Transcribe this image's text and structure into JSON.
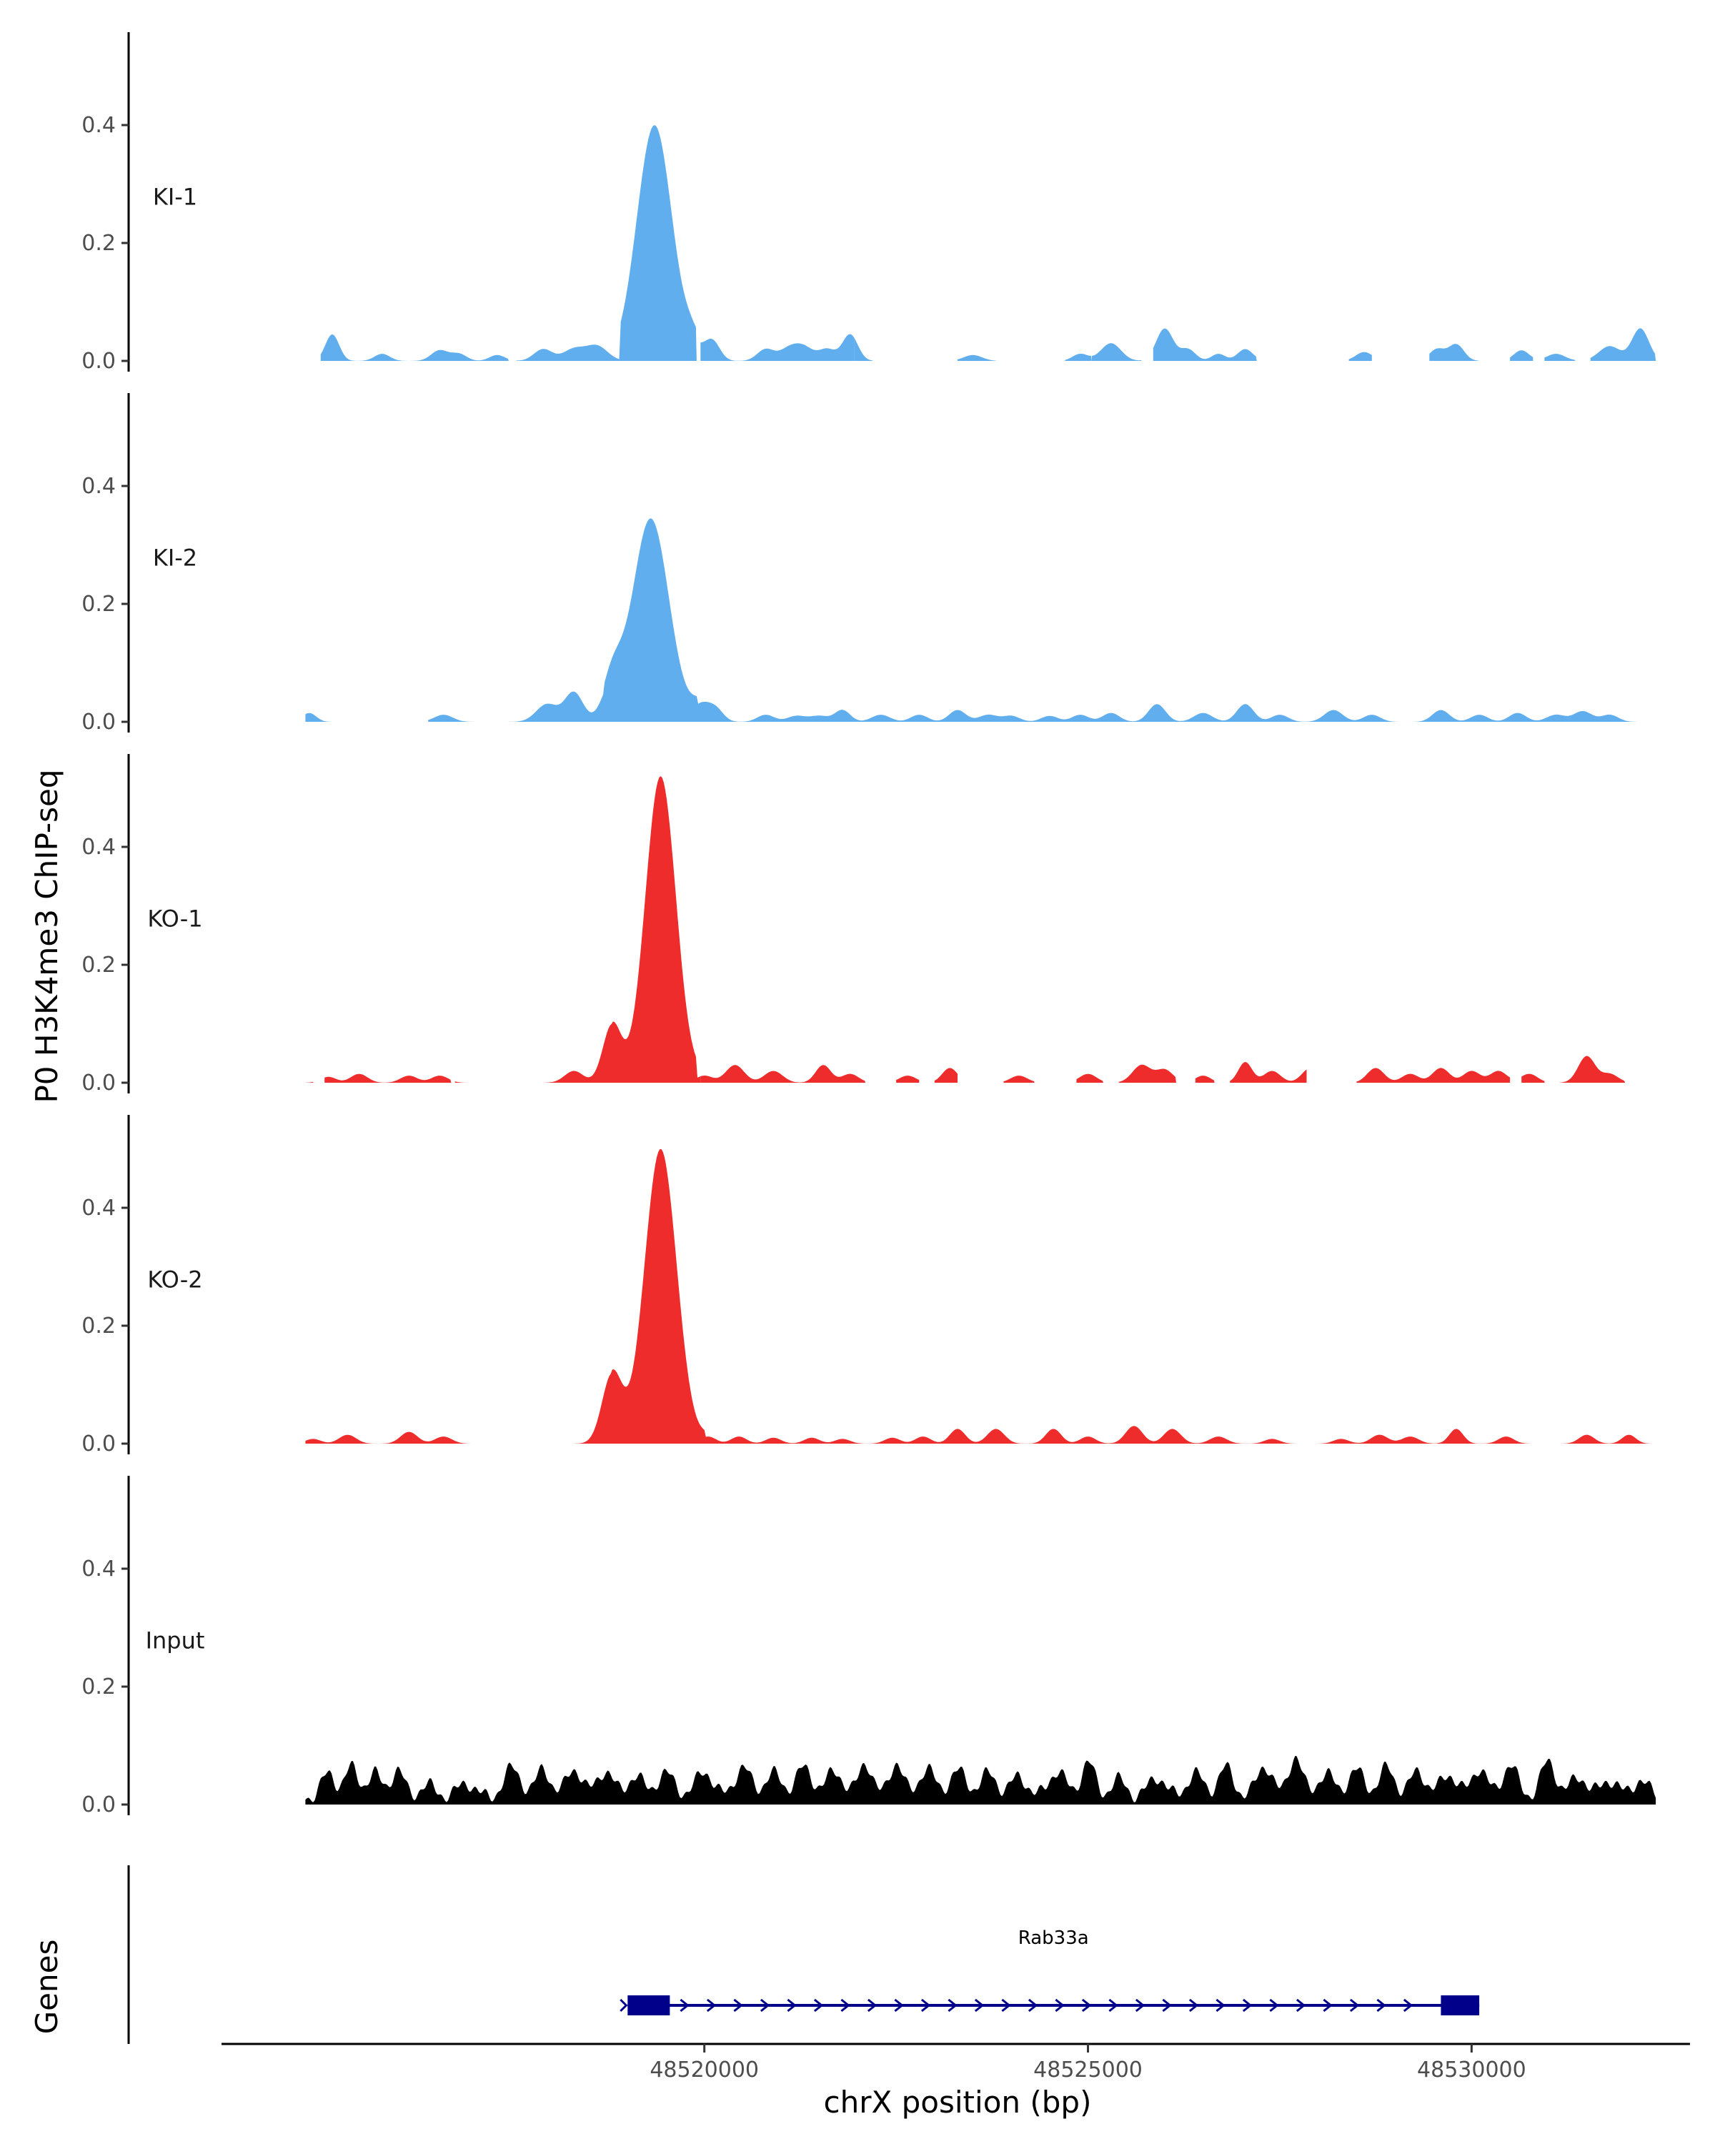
{
  "chart_data": {
    "type": "area",
    "ylabel": "P0 H3K4me3 ChIP-seq",
    "xlabel": "chrX position (bp)",
    "xlim": [
      48513800,
      48532800
    ],
    "ylim": [
      0,
      0.55
    ],
    "yticks": [
      0.0,
      0.2,
      0.4
    ],
    "ytick_labels": [
      "0.0",
      "0.2",
      "0.4"
    ],
    "xticks": [
      48520000,
      48525000,
      48530000
    ],
    "xtick_labels": [
      "48520000",
      "48525000",
      "48530000"
    ],
    "colors": {
      "KI": "#61aeee",
      "KO": "#ee2c2c",
      "Input": "#000000",
      "gene": "#00008b"
    },
    "tracks": [
      {
        "name": "KI-1",
        "color": "#61aeee",
        "peak": {
          "center": 48519350,
          "sigma": 230,
          "height": 0.4,
          "left_start": 48518900,
          "right_end": 48519900
        },
        "bumps": [
          [
            48515150,
            0.045,
            90
          ],
          [
            48515800,
            0.012,
            100
          ],
          [
            48516550,
            0.018,
            110
          ],
          [
            48516800,
            0.012,
            100
          ],
          [
            48517300,
            0.01,
            100
          ],
          [
            48517900,
            0.02,
            120
          ],
          [
            48518300,
            0.02,
            140
          ],
          [
            48518600,
            0.025,
            140
          ],
          [
            48519850,
            0.03,
            110
          ],
          [
            48520100,
            0.035,
            100
          ],
          [
            48520800,
            0.02,
            110
          ],
          [
            48521100,
            0.02,
            120
          ],
          [
            48521300,
            0.022,
            120
          ],
          [
            48521600,
            0.02,
            110
          ],
          [
            48521900,
            0.045,
            100
          ],
          [
            48523500,
            0.01,
            120
          ],
          [
            48524900,
            0.012,
            100
          ],
          [
            48525300,
            0.03,
            130
          ],
          [
            48526000,
            0.055,
            110
          ],
          [
            48526300,
            0.02,
            100
          ],
          [
            48526700,
            0.012,
            90
          ],
          [
            48527050,
            0.02,
            100
          ],
          [
            48528600,
            0.015,
            110
          ],
          [
            48529550,
            0.02,
            100
          ],
          [
            48529800,
            0.028,
            100
          ],
          [
            48530650,
            0.018,
            100
          ],
          [
            48531100,
            0.012,
            120
          ],
          [
            48531800,
            0.025,
            140
          ],
          [
            48532200,
            0.055,
            110
          ]
        ],
        "segments": [
          [
            48515000,
            48517450
          ],
          [
            48517550,
            48519900
          ],
          [
            48519950,
            48521950
          ],
          [
            48521950,
            48522200
          ],
          [
            48523300,
            48523800
          ],
          [
            48524700,
            48525050
          ],
          [
            48525050,
            48525700
          ],
          [
            48525850,
            48527200
          ],
          [
            48528400,
            48528700
          ],
          [
            48529450,
            48529950
          ],
          [
            48529950,
            48530100
          ],
          [
            48530500,
            48530800
          ],
          [
            48530950,
            48531350
          ],
          [
            48531550,
            48532400
          ]
        ]
      },
      {
        "name": "KI-2",
        "color": "#61aeee",
        "peak": {
          "center": 48519300,
          "sigma": 240,
          "height": 0.345,
          "left_start": 48518700,
          "right_end": 48519900
        },
        "bumps": [
          [
            48514850,
            0.015,
            90
          ],
          [
            48516600,
            0.012,
            120
          ],
          [
            48517950,
            0.03,
            140
          ],
          [
            48518300,
            0.05,
            120
          ],
          [
            48518800,
            0.07,
            130
          ],
          [
            48519950,
            0.03,
            120
          ],
          [
            48520150,
            0.02,
            100
          ],
          [
            48520800,
            0.012,
            110
          ],
          [
            48521200,
            0.01,
            120
          ],
          [
            48521500,
            0.01,
            120
          ],
          [
            48521800,
            0.02,
            100
          ],
          [
            48522300,
            0.012,
            120
          ],
          [
            48522800,
            0.012,
            110
          ],
          [
            48523300,
            0.02,
            110
          ],
          [
            48523700,
            0.012,
            120
          ],
          [
            48524000,
            0.01,
            110
          ],
          [
            48524500,
            0.01,
            110
          ],
          [
            48524900,
            0.012,
            110
          ],
          [
            48525300,
            0.015,
            110
          ],
          [
            48525900,
            0.03,
            110
          ],
          [
            48526500,
            0.015,
            120
          ],
          [
            48527050,
            0.03,
            110
          ],
          [
            48527500,
            0.012,
            110
          ],
          [
            48528200,
            0.02,
            120
          ],
          [
            48528700,
            0.012,
            110
          ],
          [
            48529600,
            0.02,
            110
          ],
          [
            48530100,
            0.012,
            110
          ],
          [
            48530600,
            0.015,
            110
          ],
          [
            48531100,
            0.012,
            120
          ],
          [
            48531450,
            0.018,
            120
          ],
          [
            48531800,
            0.012,
            110
          ]
        ],
        "segments": [
          [
            48514800,
            48515150
          ],
          [
            48516400,
            48532400
          ]
        ]
      },
      {
        "name": "KO-1",
        "color": "#ee2c2c",
        "peak": {
          "center": 48519430,
          "sigma": 200,
          "height": 0.52,
          "left_start": 48518800,
          "right_end": 48519900
        },
        "bumps": [
          [
            48515100,
            0.01,
            100
          ],
          [
            48515500,
            0.015,
            110
          ],
          [
            48516150,
            0.012,
            110
          ],
          [
            48516550,
            0.012,
            110
          ],
          [
            48518300,
            0.02,
            120
          ],
          [
            48518800,
            0.1,
            120
          ],
          [
            48520000,
            0.012,
            110
          ],
          [
            48520400,
            0.03,
            120
          ],
          [
            48520900,
            0.02,
            120
          ],
          [
            48521550,
            0.03,
            100
          ],
          [
            48521900,
            0.015,
            110
          ],
          [
            48522650,
            0.012,
            110
          ],
          [
            48523200,
            0.025,
            100
          ],
          [
            48524100,
            0.012,
            110
          ],
          [
            48525000,
            0.015,
            110
          ],
          [
            48525700,
            0.03,
            120
          ],
          [
            48526000,
            0.022,
            110
          ],
          [
            48526500,
            0.012,
            100
          ],
          [
            48527050,
            0.035,
            90
          ],
          [
            48527400,
            0.02,
            110
          ],
          [
            48527900,
            0.025,
            110
          ],
          [
            48528750,
            0.025,
            110
          ],
          [
            48529200,
            0.015,
            110
          ],
          [
            48529600,
            0.025,
            110
          ],
          [
            48530000,
            0.02,
            110
          ],
          [
            48530350,
            0.02,
            110
          ],
          [
            48530750,
            0.015,
            110
          ],
          [
            48531500,
            0.045,
            110
          ],
          [
            48531800,
            0.015,
            110
          ]
        ],
        "segments": [
          [
            48514800,
            48514900
          ],
          [
            48515050,
            48516700
          ],
          [
            48516750,
            48519950
          ],
          [
            48519950,
            48522100
          ],
          [
            48522500,
            48522800
          ],
          [
            48523000,
            48523300
          ],
          [
            48523900,
            48524300
          ],
          [
            48524850,
            48525200
          ],
          [
            48525400,
            48526150
          ],
          [
            48526400,
            48526650
          ],
          [
            48526850,
            48527850
          ],
          [
            48528500,
            48530500
          ],
          [
            48530650,
            48530950
          ],
          [
            48531150,
            48532000
          ]
        ]
      },
      {
        "name": "KO-2",
        "color": "#ee2c2c",
        "peak": {
          "center": 48519430,
          "sigma": 210,
          "height": 0.5,
          "left_start": 48518800,
          "right_end": 48520000
        },
        "bumps": [
          [
            48514900,
            0.008,
            100
          ],
          [
            48515350,
            0.015,
            110
          ],
          [
            48516150,
            0.02,
            110
          ],
          [
            48516600,
            0.012,
            110
          ],
          [
            48518800,
            0.12,
            130
          ],
          [
            48520050,
            0.012,
            100
          ],
          [
            48520450,
            0.012,
            100
          ],
          [
            48520900,
            0.01,
            100
          ],
          [
            48521400,
            0.01,
            100
          ],
          [
            48521800,
            0.008,
            100
          ],
          [
            48522450,
            0.01,
            100
          ],
          [
            48522850,
            0.012,
            100
          ],
          [
            48523300,
            0.025,
            100
          ],
          [
            48523800,
            0.025,
            110
          ],
          [
            48524550,
            0.025,
            100
          ],
          [
            48525000,
            0.012,
            100
          ],
          [
            48525600,
            0.03,
            110
          ],
          [
            48526100,
            0.025,
            110
          ],
          [
            48526700,
            0.012,
            110
          ],
          [
            48527400,
            0.008,
            100
          ],
          [
            48528300,
            0.008,
            100
          ],
          [
            48528800,
            0.015,
            110
          ],
          [
            48529200,
            0.012,
            110
          ],
          [
            48529800,
            0.025,
            90
          ],
          [
            48530450,
            0.012,
            100
          ],
          [
            48531500,
            0.015,
            100
          ],
          [
            48532050,
            0.015,
            90
          ]
        ],
        "segments": [
          [
            48514800,
            48532400
          ]
        ]
      },
      {
        "name": "Input",
        "color": "#000000",
        "peak": null,
        "bumps": [
          [
            48515100,
            0.04,
            90
          ],
          [
            48515400,
            0.05,
            90
          ],
          [
            48515700,
            0.04,
            90
          ],
          [
            48516000,
            0.045,
            90
          ],
          [
            48516400,
            0.02,
            110
          ],
          [
            48516900,
            0.025,
            110
          ],
          [
            48517500,
            0.05,
            110
          ],
          [
            48517900,
            0.05,
            90
          ],
          [
            48518300,
            0.05,
            100
          ],
          [
            48518700,
            0.045,
            110
          ],
          [
            48519100,
            0.035,
            110
          ],
          [
            48519500,
            0.04,
            120
          ],
          [
            48520000,
            0.045,
            110
          ],
          [
            48520500,
            0.05,
            110
          ],
          [
            48520900,
            0.04,
            110
          ],
          [
            48521300,
            0.05,
            110
          ],
          [
            48521700,
            0.045,
            110
          ],
          [
            48522100,
            0.06,
            90
          ],
          [
            48522500,
            0.06,
            90
          ],
          [
            48522900,
            0.05,
            100
          ],
          [
            48523300,
            0.045,
            110
          ],
          [
            48523700,
            0.04,
            110
          ],
          [
            48524100,
            0.035,
            110
          ],
          [
            48524600,
            0.045,
            110
          ],
          [
            48525000,
            0.06,
            90
          ],
          [
            48525400,
            0.03,
            100
          ],
          [
            48525900,
            0.035,
            110
          ],
          [
            48526400,
            0.04,
            110
          ],
          [
            48526800,
            0.05,
            100
          ],
          [
            48527300,
            0.055,
            100
          ],
          [
            48527700,
            0.07,
            90
          ],
          [
            48528100,
            0.04,
            110
          ],
          [
            48528500,
            0.045,
            110
          ],
          [
            48528900,
            0.05,
            100
          ],
          [
            48529300,
            0.045,
            100
          ],
          [
            48529700,
            0.04,
            110
          ],
          [
            48530100,
            0.05,
            100
          ],
          [
            48530500,
            0.055,
            100
          ],
          [
            48531000,
            0.06,
            100
          ],
          [
            48531400,
            0.035,
            110
          ],
          [
            48531800,
            0.03,
            110
          ],
          [
            48532200,
            0.03,
            100
          ]
        ],
        "segments": [
          [
            48514800,
            48532400
          ]
        ]
      }
    ],
    "genes_track": {
      "ylabel": "Genes",
      "gene": {
        "name": "Rab33a",
        "start": 48519000,
        "end": 48530100,
        "strand": "+",
        "exons": [
          [
            48519000,
            48519550
          ],
          [
            48529600,
            48530100
          ]
        ]
      }
    }
  }
}
